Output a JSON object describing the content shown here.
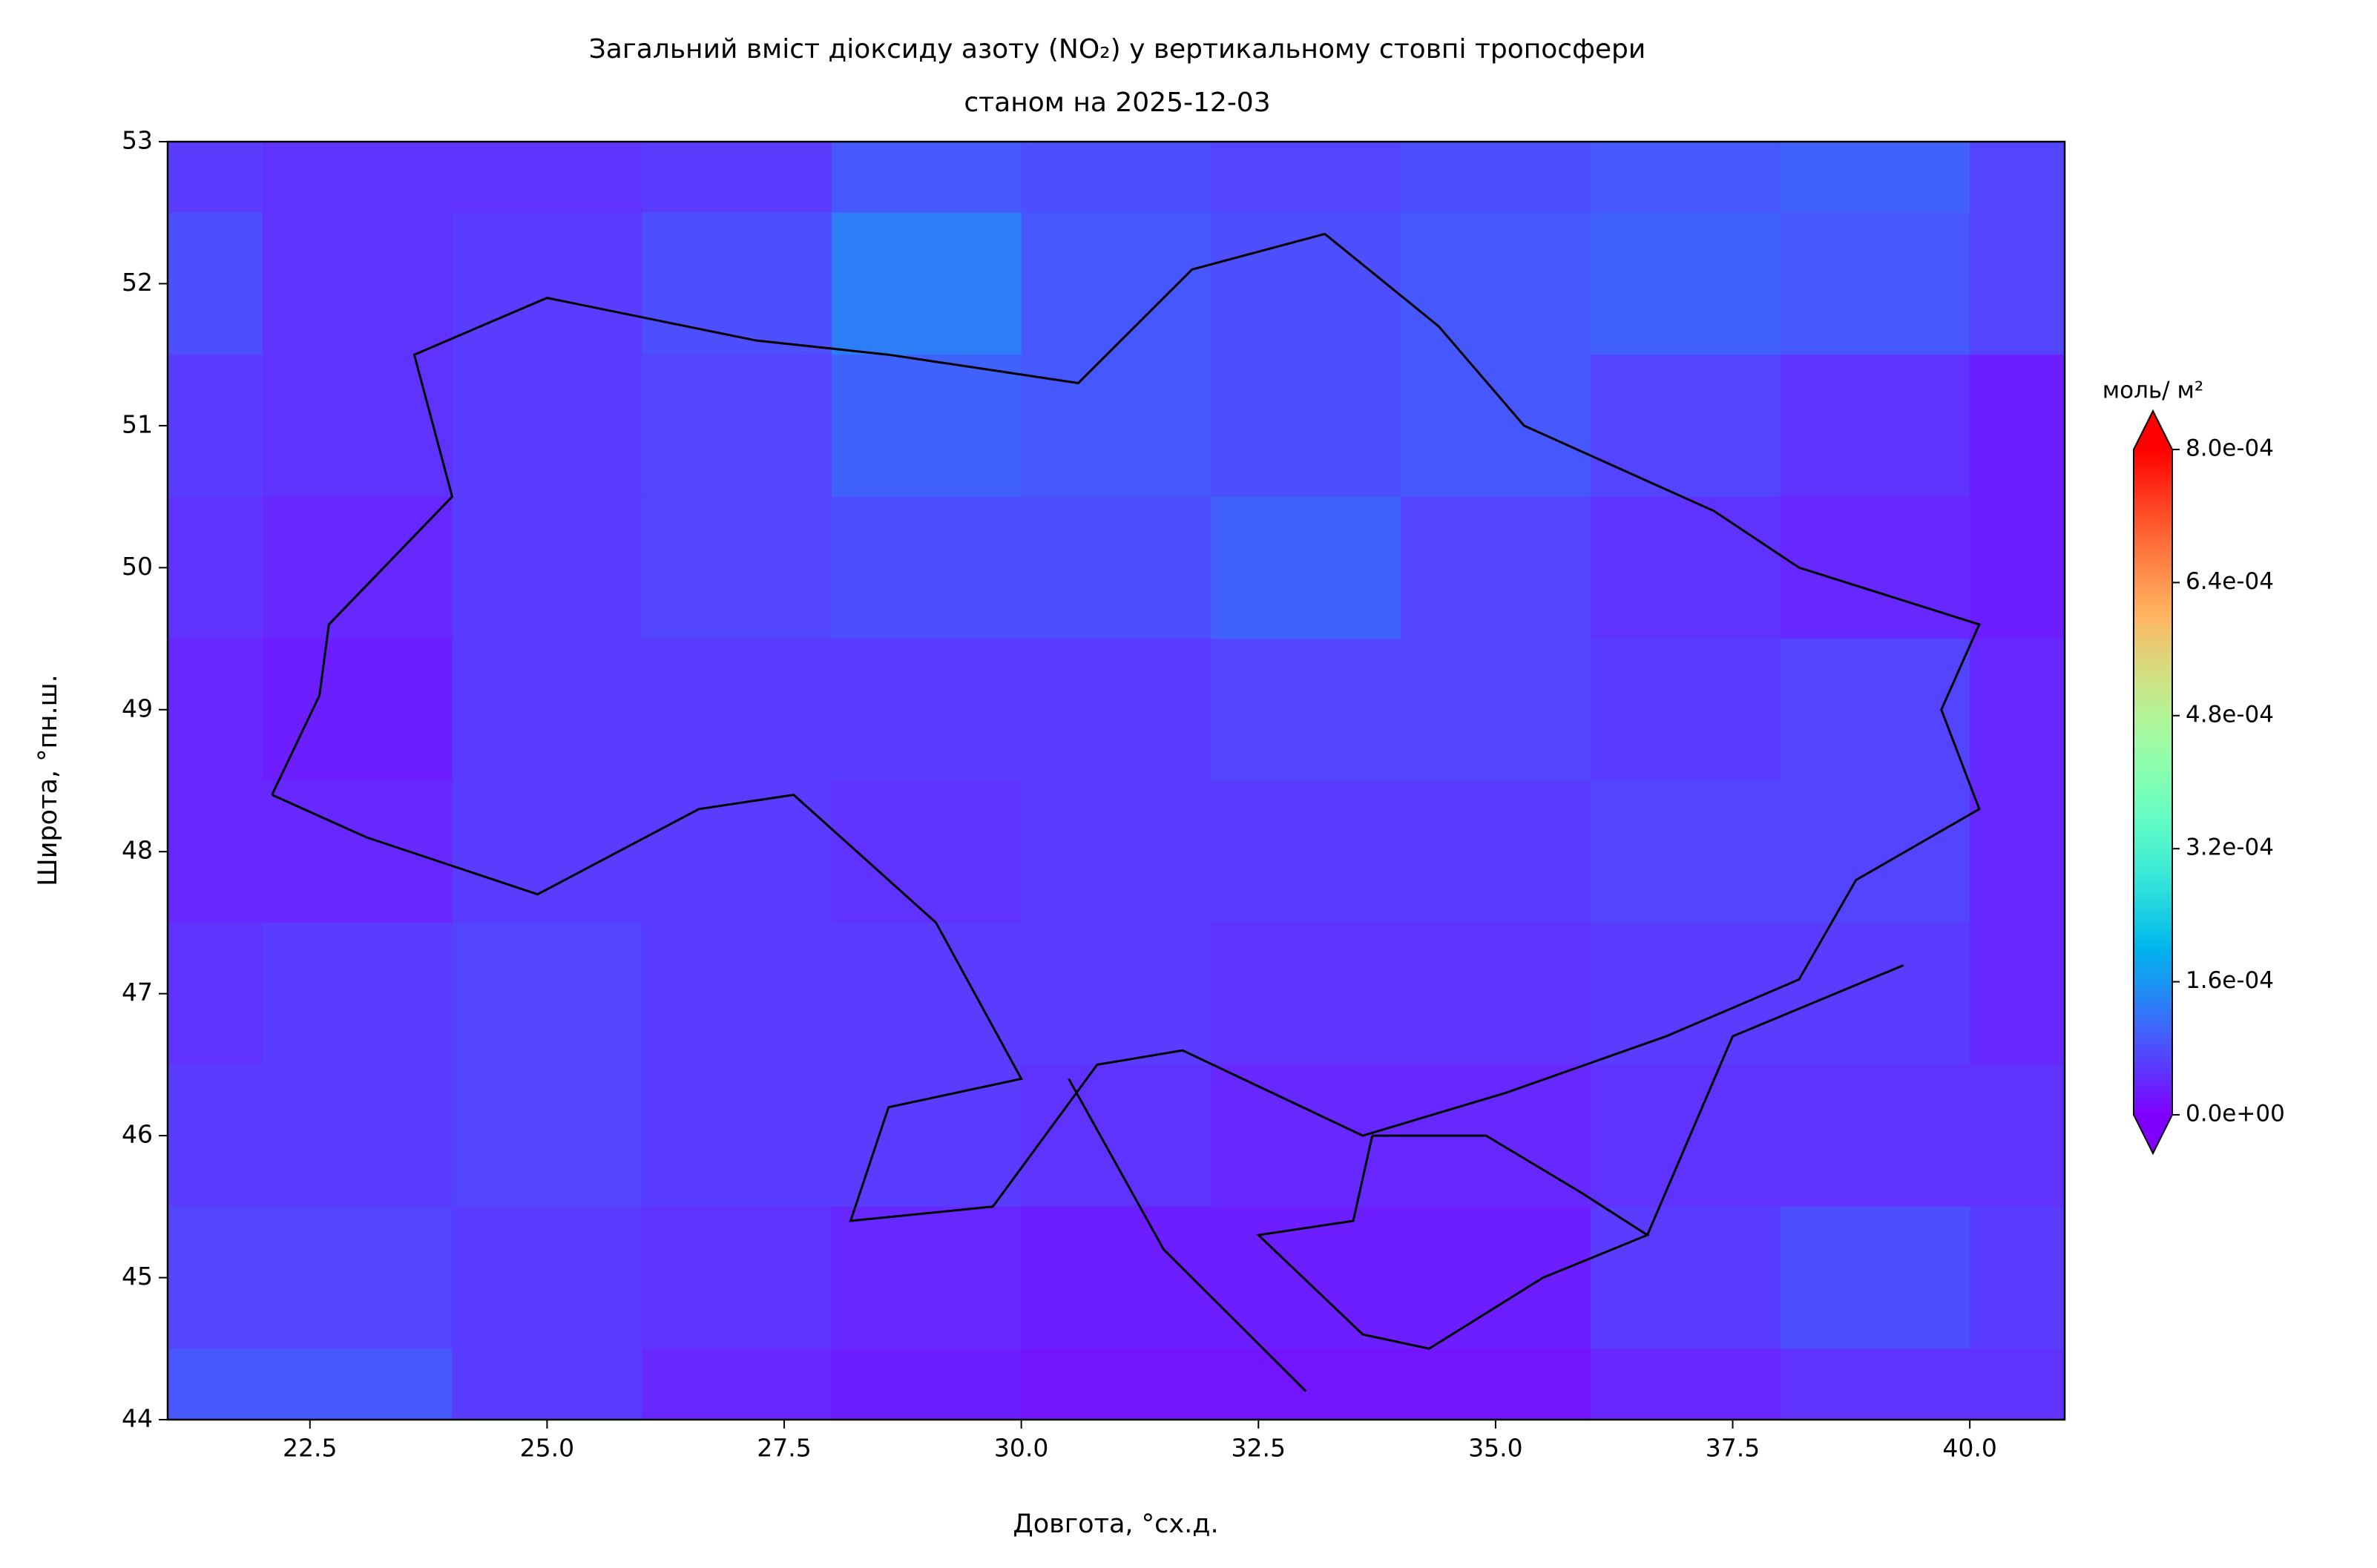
{
  "chart_data": {
    "type": "contour",
    "title": "Загальний вміст діоксиду азоту (NO₂) у вертикальному стовпі тропосфери",
    "subtitle": "станом на 2025-12-03",
    "x_label": "Довгота, °сх.д.",
    "y_label": "Широта, °пн.ш.",
    "colorbar_label": "моль/ м²",
    "colormap": "rainbow",
    "x": [
      21,
      23,
      25,
      27,
      29,
      31,
      33,
      35,
      37,
      39,
      41
    ],
    "y": [
      53,
      52,
      51,
      50,
      49,
      48,
      47,
      46,
      45,
      44
    ],
    "values": [
      [
        6e-05,
        5e-05,
        5e-05,
        6e-05,
        9e-05,
        8e-05,
        7e-05,
        8e-05,
        9e-05,
        0.0001,
        7e-05
      ],
      [
        8e-05,
        5e-05,
        6e-05,
        8e-05,
        0.00013,
        9e-05,
        8e-05,
        9e-05,
        0.0001,
        9e-05,
        7e-05
      ],
      [
        6e-05,
        5e-05,
        6e-05,
        7e-05,
        0.0001,
        9e-05,
        8e-05,
        9e-05,
        7e-05,
        5e-05,
        3e-05
      ],
      [
        5e-05,
        4e-05,
        6e-05,
        7e-05,
        8e-05,
        8e-05,
        0.0001,
        7e-05,
        5e-05,
        4e-05,
        3e-05
      ],
      [
        4e-05,
        3e-05,
        6e-05,
        6e-05,
        6e-05,
        6e-05,
        7e-05,
        7e-05,
        6e-05,
        7e-05,
        4e-05
      ],
      [
        4e-05,
        4e-05,
        6e-05,
        6e-05,
        5e-05,
        6e-05,
        6e-05,
        6e-05,
        7e-05,
        7e-05,
        4e-05
      ],
      [
        5e-05,
        6e-05,
        7e-05,
        6e-05,
        6e-05,
        6e-05,
        5e-05,
        5e-05,
        6e-05,
        6e-05,
        4e-05
      ],
      [
        6e-05,
        6e-05,
        7e-05,
        6e-05,
        6e-05,
        5e-05,
        4e-05,
        4e-05,
        5e-05,
        5e-05,
        5e-05
      ],
      [
        7e-05,
        7e-05,
        6e-05,
        5e-05,
        4e-05,
        3e-05,
        3e-05,
        3e-05,
        6e-05,
        8e-05,
        6e-05
      ],
      [
        9e-05,
        9e-05,
        6e-05,
        4e-05,
        3e-05,
        2e-05,
        2e-05,
        2e-05,
        4e-05,
        5e-05,
        5e-05
      ]
    ],
    "xlim": [
      21,
      41
    ],
    "ylim": [
      44,
      53
    ],
    "xticks": [
      22.5,
      {
        "value": 25,
        "label": "25.0"
      },
      27.5,
      {
        "value": 30,
        "label": "30.0"
      },
      32.5,
      {
        "value": 35,
        "label": "35.0"
      },
      37.5,
      {
        "value": 40,
        "label": "40.0"
      }
    ],
    "yticks": [
      44,
      45,
      46,
      47,
      48,
      49,
      50,
      51,
      52,
      53
    ],
    "clim": [
      0,
      0.0008
    ],
    "cticks": [
      {
        "value": 0,
        "label": "0.0e+00"
      },
      {
        "value": 0.00016,
        "label": "1.6e-04"
      },
      {
        "value": 0.00032,
        "label": "3.2e-04"
      },
      {
        "value": 0.00048,
        "label": "4.8e-04"
      },
      {
        "value": 0.00064,
        "label": "6.4e-04"
      },
      {
        "value": 0.0008,
        "label": "8.0e-04"
      }
    ]
  }
}
